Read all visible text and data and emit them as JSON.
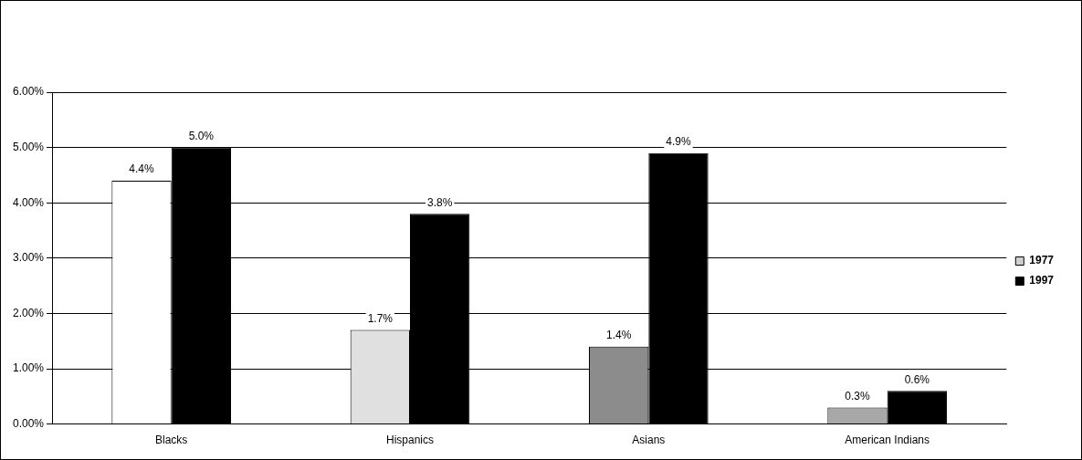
{
  "chart_data": {
    "type": "bar",
    "categories": [
      "Blacks",
      "Hispanics",
      "Asians",
      "American Indians"
    ],
    "series": [
      {
        "name": "1977",
        "color": "#d0d0d0",
        "colors": [
          "#ffffff",
          "#e0e0e0",
          "#8c8c8c",
          "#a8a8a8"
        ],
        "values": [
          4.4,
          1.7,
          1.4,
          0.3
        ],
        "value_labels": [
          "4.4%",
          "1.7%",
          "1.4%",
          "0.3%"
        ]
      },
      {
        "name": "1997",
        "color": "#000000",
        "values": [
          5.0,
          3.8,
          4.9,
          0.6
        ],
        "value_labels": [
          "5.0%",
          "3.8%",
          "4.9%",
          "0.6%"
        ]
      }
    ],
    "ylim": [
      0,
      6
    ],
    "yticks": [
      {
        "value": 0,
        "label": "0.00%"
      },
      {
        "value": 1,
        "label": "1.00%"
      },
      {
        "value": 2,
        "label": "2.00%"
      },
      {
        "value": 3,
        "label": "3.00%"
      },
      {
        "value": 4,
        "label": "4.00%"
      },
      {
        "value": 5,
        "label": "5.00%"
      },
      {
        "value": 6,
        "label": "6.00%"
      }
    ],
    "grid": "y",
    "legend": "right"
  }
}
